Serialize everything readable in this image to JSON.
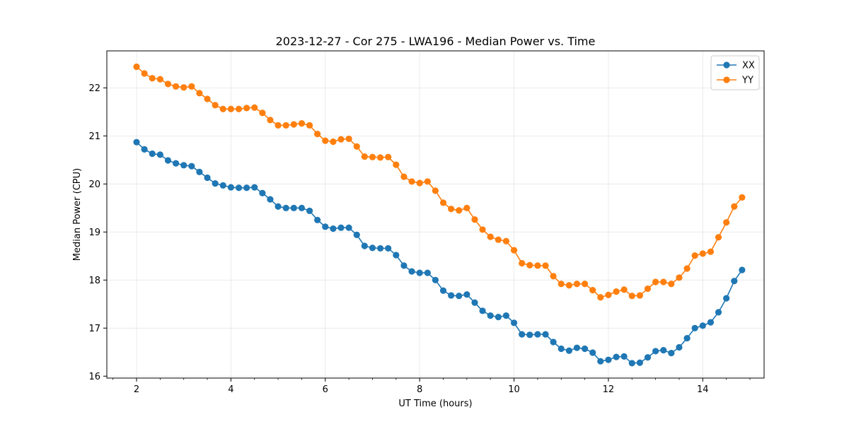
{
  "chart_data": {
    "type": "line",
    "title": "2023-12-27 - Cor 275 - LWA196 - Median Power vs. Time",
    "xlabel": "UT Time (hours)",
    "ylabel": "Median Power (CPU)",
    "xlim": [
      1.37,
      15.3
    ],
    "ylim": [
      15.96,
      22.77
    ],
    "xticks": [
      2,
      4,
      6,
      8,
      10,
      12,
      14
    ],
    "yticks": [
      16,
      17,
      18,
      19,
      20,
      21,
      22
    ],
    "grid": true,
    "legend_position": "top-right",
    "x": [
      2.0,
      2.167,
      2.333,
      2.5,
      2.667,
      2.833,
      3.0,
      3.167,
      3.333,
      3.5,
      3.667,
      3.833,
      4.0,
      4.167,
      4.333,
      4.5,
      4.667,
      4.833,
      5.0,
      5.167,
      5.333,
      5.5,
      5.667,
      5.833,
      6.0,
      6.167,
      6.333,
      6.5,
      6.667,
      6.833,
      7.0,
      7.167,
      7.333,
      7.5,
      7.667,
      7.833,
      8.0,
      8.167,
      8.333,
      8.5,
      8.667,
      8.833,
      9.0,
      9.167,
      9.333,
      9.5,
      9.667,
      9.833,
      10.0,
      10.167,
      10.333,
      10.5,
      10.667,
      10.833,
      11.0,
      11.167,
      11.333,
      11.5,
      11.667,
      11.833,
      12.0,
      12.167,
      12.333,
      12.5,
      12.667,
      12.833,
      13.0,
      13.167,
      13.333,
      13.5,
      13.667,
      13.833,
      14.0,
      14.167,
      14.333,
      14.5,
      14.667,
      14.833
    ],
    "series": [
      {
        "name": "XX",
        "color": "#1f77b4",
        "values": [
          20.87,
          20.72,
          20.63,
          20.61,
          20.49,
          20.43,
          20.39,
          20.37,
          20.25,
          20.13,
          20.01,
          19.97,
          19.93,
          19.92,
          19.92,
          19.93,
          19.81,
          19.68,
          19.53,
          19.5,
          19.5,
          19.5,
          19.44,
          19.25,
          19.11,
          19.07,
          19.09,
          19.09,
          18.94,
          18.71,
          18.67,
          18.66,
          18.66,
          18.52,
          18.3,
          18.18,
          18.15,
          18.15,
          18.0,
          17.78,
          17.68,
          17.67,
          17.7,
          17.53,
          17.36,
          17.26,
          17.23,
          17.26,
          17.11,
          16.87,
          16.86,
          16.87,
          16.87,
          16.71,
          16.57,
          16.53,
          16.59,
          16.57,
          16.49,
          16.31,
          16.34,
          16.4,
          16.41,
          16.27,
          16.28,
          16.39,
          16.52,
          16.54,
          16.48,
          16.6,
          16.79,
          17.0,
          17.05,
          17.12,
          17.33,
          17.62,
          17.98,
          18.21
        ]
      },
      {
        "name": "YY",
        "color": "#ff7f0e",
        "values": [
          22.44,
          22.3,
          22.2,
          22.18,
          22.08,
          22.03,
          22.01,
          22.03,
          21.89,
          21.77,
          21.64,
          21.56,
          21.56,
          21.56,
          21.58,
          21.59,
          21.48,
          21.33,
          21.22,
          21.22,
          21.24,
          21.26,
          21.22,
          21.04,
          20.9,
          20.88,
          20.93,
          20.94,
          20.78,
          20.57,
          20.56,
          20.55,
          20.56,
          20.4,
          20.15,
          20.05,
          20.02,
          20.05,
          19.86,
          19.61,
          19.48,
          19.45,
          19.5,
          19.26,
          19.05,
          18.9,
          18.84,
          18.81,
          18.62,
          18.35,
          18.31,
          18.3,
          18.3,
          18.08,
          17.92,
          17.89,
          17.92,
          17.92,
          17.79,
          17.64,
          17.69,
          17.76,
          17.8,
          17.67,
          17.68,
          17.82,
          17.96,
          17.96,
          17.92,
          18.05,
          18.24,
          18.51,
          18.55,
          18.59,
          18.89,
          19.2,
          19.53,
          19.72
        ]
      }
    ]
  }
}
